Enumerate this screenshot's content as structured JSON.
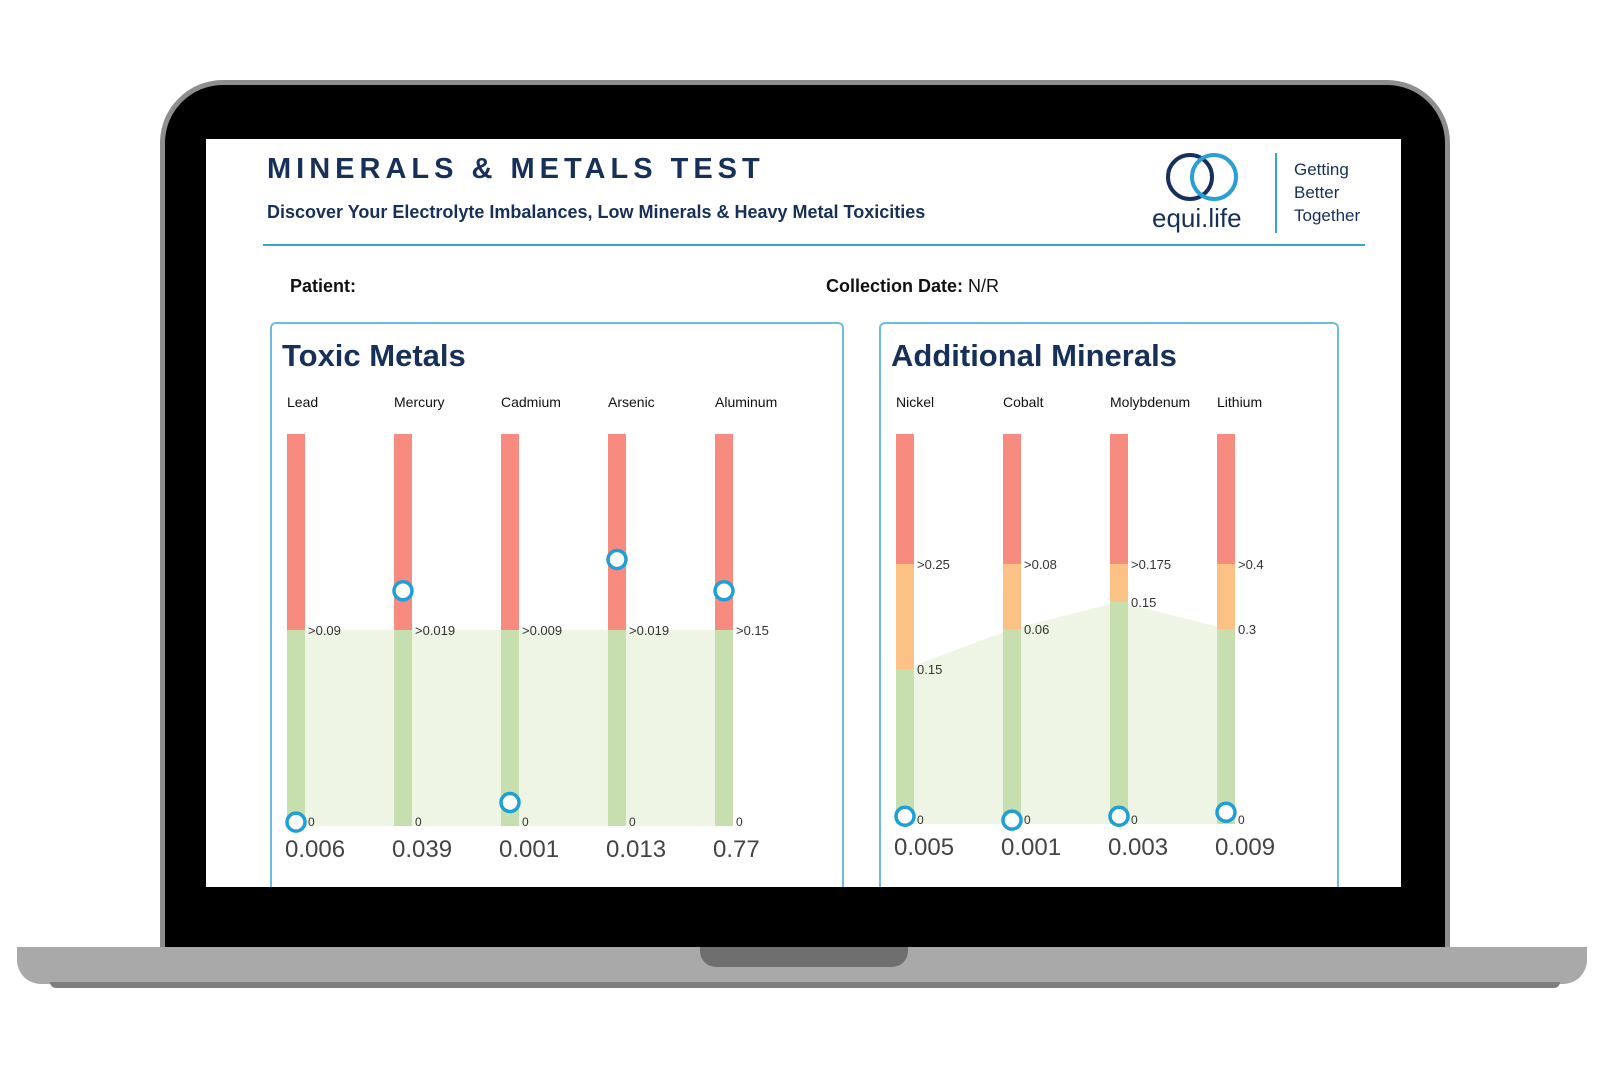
{
  "header": {
    "title": "MINERALS  &  METALS  TEST",
    "subtitle": "Discover Your Electrolyte Imbalances, Low Minerals & Heavy Metal Toxicities"
  },
  "brand": {
    "name": "equi.life",
    "tagline": [
      "Getting",
      "Better",
      "Together"
    ],
    "color": "#16305a",
    "accent": "#3aa3d2"
  },
  "patient": {
    "label": "Patient:",
    "value": ""
  },
  "collection": {
    "label": "Collection Date:",
    "value": "N/R"
  },
  "colors": {
    "high": "#f78b80",
    "borderline": "#fcc285",
    "normal": "#c7dfae",
    "shade": "#eef5e4",
    "marker": "#1e9fd8"
  },
  "chart_data": [
    {
      "type": "range-bar",
      "title": "Toxic Metals",
      "categories": [
        "Lead",
        "Mercury",
        "Cadmium",
        "Arsenic",
        "Aluminum"
      ],
      "range_labels": [
        {
          "zero": "0",
          "upper": ">0.09"
        },
        {
          "zero": "0",
          "upper": ">0.019"
        },
        {
          "zero": "0",
          "upper": ">0.009"
        },
        {
          "zero": "0",
          "upper": ">0.019"
        },
        {
          "zero": "0",
          "upper": ">0.15"
        }
      ],
      "values": [
        "0.006",
        "0.039",
        "0.001",
        "0.013",
        "0.77"
      ],
      "marker_level": [
        0.01,
        0.6,
        0.06,
        0.68,
        0.6
      ]
    },
    {
      "type": "range-bar",
      "title": "Additional Minerals",
      "categories": [
        "Nickel",
        "Cobalt",
        "Molybdenum",
        "Lithium"
      ],
      "range_labels": [
        {
          "zero": "0",
          "mid": "0.15",
          "upper": ">0.25"
        },
        {
          "zero": "0",
          "mid": "0.06",
          "upper": ">0.08"
        },
        {
          "zero": "0",
          "mid": "0.15",
          "upper": ">0.175"
        },
        {
          "zero": "0",
          "mid": "0.3",
          "upper": ">0.4"
        }
      ],
      "values": [
        "0.005",
        "0.001",
        "0.003",
        "0.009"
      ],
      "marker_level": [
        0.02,
        0.01,
        0.02,
        0.03
      ]
    }
  ]
}
